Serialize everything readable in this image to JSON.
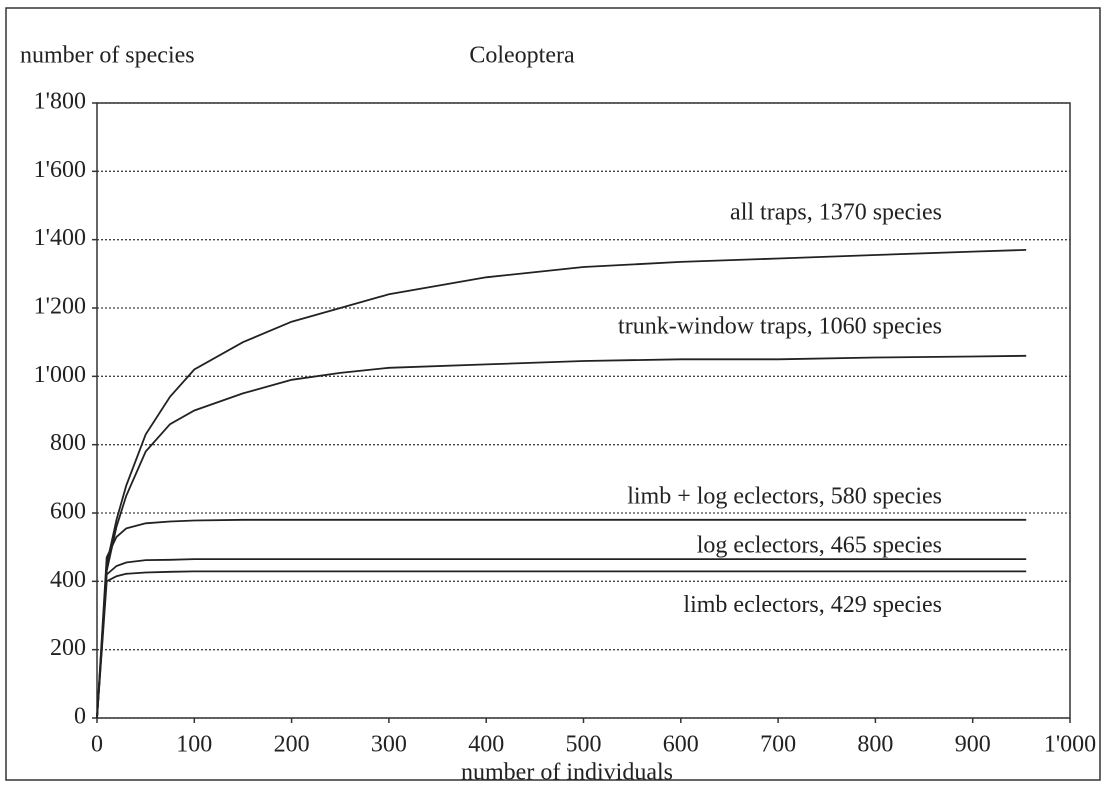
{
  "chart_data": {
    "type": "line",
    "title": "Coleoptera",
    "y_label": "number of species",
    "x_label": "number of individuals",
    "x": [
      0,
      10,
      20,
      30,
      50,
      75,
      100,
      150,
      200,
      250,
      300,
      400,
      500,
      600,
      700,
      800,
      900,
      955
    ],
    "series": [
      {
        "name": "all traps, 1370 species",
        "color": "#222222",
        "values": [
          0,
          450,
          580,
          680,
          830,
          940,
          1020,
          1100,
          1160,
          1200,
          1240,
          1290,
          1320,
          1335,
          1345,
          1355,
          1365,
          1370
        ]
      },
      {
        "name": "trunk-window traps, 1060 species",
        "color": "#222222",
        "values": [
          0,
          430,
          560,
          650,
          780,
          860,
          900,
          950,
          990,
          1010,
          1025,
          1035,
          1045,
          1050,
          1050,
          1055,
          1058,
          1060
        ]
      },
      {
        "name": "limb + log eclectors, 580 species",
        "color": "#222222",
        "values": [
          0,
          470,
          530,
          555,
          570,
          575,
          578,
          580,
          580,
          580,
          580,
          580,
          580,
          580,
          580,
          580,
          580,
          580
        ]
      },
      {
        "name": "log eclectors, 465 species",
        "color": "#222222",
        "values": [
          0,
          420,
          445,
          455,
          462,
          463,
          465,
          465,
          465,
          465,
          465,
          465,
          465,
          465,
          465,
          465,
          465,
          465
        ]
      },
      {
        "name": "limb eclectors, 429 species",
        "color": "#222222",
        "values": [
          0,
          400,
          415,
          422,
          426,
          428,
          429,
          429,
          429,
          429,
          429,
          429,
          429,
          429,
          429,
          429,
          429,
          429
        ]
      }
    ],
    "xlim": [
      0,
      1000
    ],
    "xticks": [
      0,
      100,
      200,
      300,
      400,
      500,
      600,
      700,
      800,
      900,
      {
        "value": 1000,
        "label": "1'000"
      }
    ],
    "ylim": [
      0,
      1800
    ],
    "yticks": [
      0,
      200,
      400,
      600,
      800,
      {
        "value": 1000,
        "label": "1'000"
      },
      {
        "value": 1200,
        "label": "1'200"
      },
      {
        "value": 1400,
        "label": "1'400"
      },
      {
        "value": 1600,
        "label": "1'600"
      },
      {
        "value": 1800,
        "label": "1'800"
      }
    ],
    "grid": true
  }
}
